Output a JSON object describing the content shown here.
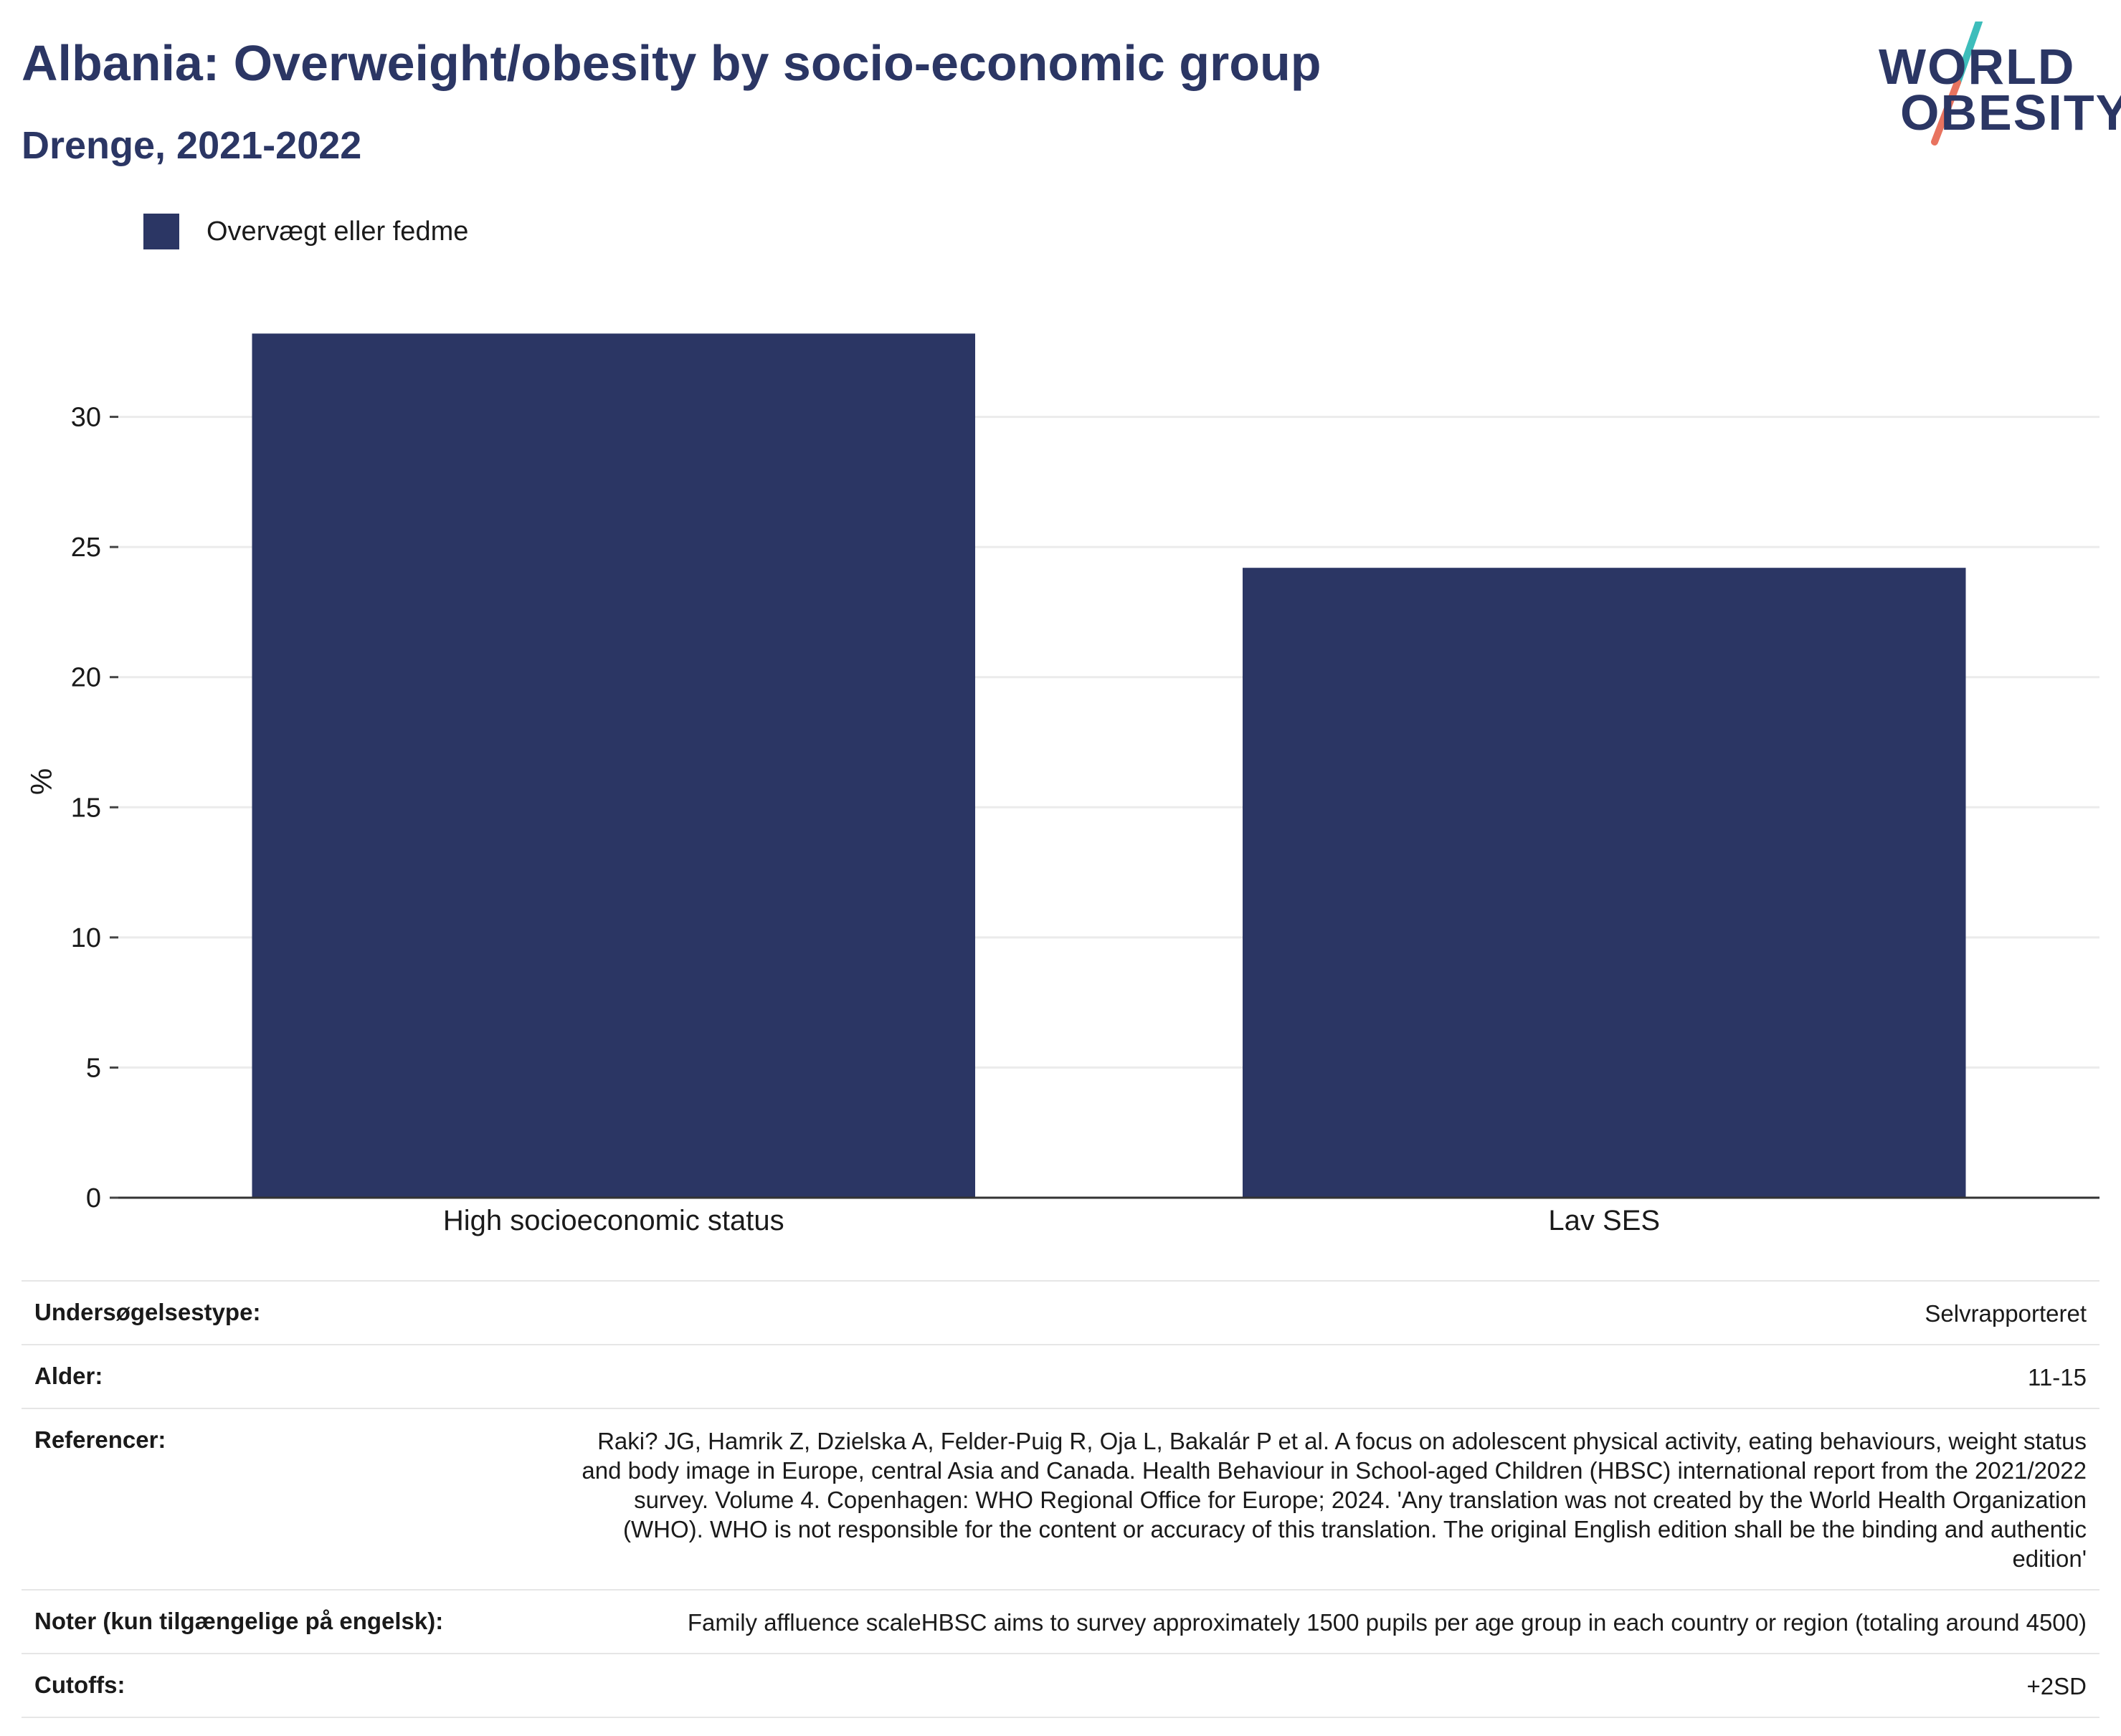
{
  "header": {
    "title": "Albania: Overweight/obesity by socio-economic group",
    "subtitle": "Drenge, 2021-2022"
  },
  "logo": {
    "line1": "WORLD",
    "line2": "OBESITY",
    "brand_color": "#2b3664",
    "slash_colors": [
      "#3dbdbb",
      "#e8735f"
    ]
  },
  "legend": {
    "label": "Overvægt eller fedme",
    "color": "#2b3664"
  },
  "chart_data": {
    "type": "bar",
    "categories": [
      "High socioeconomic status",
      "Lav SES"
    ],
    "series": [
      {
        "name": "Overvægt eller fedme",
        "values": [
          33.2,
          24.2
        ],
        "color": "#2b3664"
      }
    ],
    "ylabel": "%",
    "xlabel": "",
    "ylim": [
      0,
      35
    ],
    "yticks": [
      0,
      5,
      10,
      15,
      20,
      25,
      30
    ],
    "grid": true,
    "legend_position": "top-left"
  },
  "meta": {
    "rows": [
      {
        "key": "Undersøgelsestype:",
        "value": "Selvrapporteret"
      },
      {
        "key": "Alder:",
        "value": "11-15"
      },
      {
        "key": "Referencer:",
        "value": "Raki? JG, Hamrik Z, Dzielska A, Felder-Puig R, Oja L, Bakalár P et al. A focus on adolescent physical activity, eating behaviours, weight status and body image in Europe, central Asia and Canada. Health Behaviour in School-aged Children (HBSC) international report from the 2021/2022 survey. Volume 4. Copenhagen: WHO Regional Office for Europe; 2024. 'Any translation was not created by the World Health Organization (WHO). WHO is not responsible for the content or accuracy of this translation. The original English edition shall be the binding and authentic edition'"
      },
      {
        "key": "Noter (kun tilgængelige på engelsk):",
        "value": "Family affluence scaleHBSC aims to survey approximately 1500 pupils per age group in each country or region (totaling around 4500)"
      },
      {
        "key": "Cutoffs:",
        "value": "+2SD"
      }
    ]
  }
}
